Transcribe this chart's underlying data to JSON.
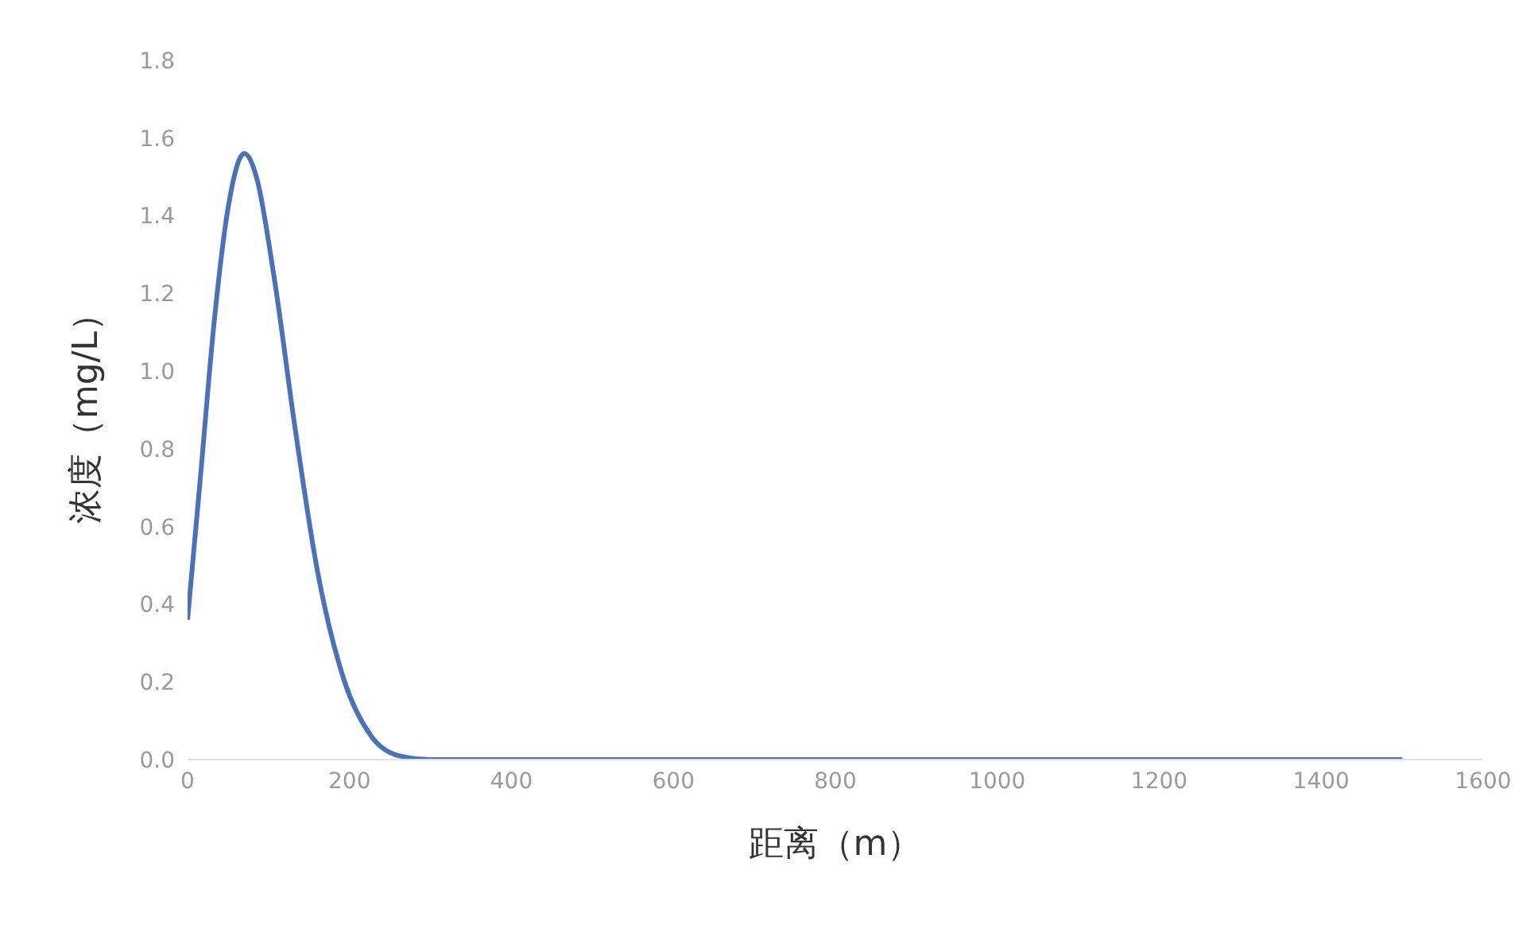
{
  "chart_data": {
    "type": "line",
    "xlabel": "距离（m）",
    "ylabel": "浓度（mg/L）",
    "x": [
      0,
      16,
      33,
      50,
      70,
      85,
      107,
      133,
      160,
      194,
      227,
      261,
      300,
      1500
    ],
    "series": [
      {
        "color": "#4a72b8",
        "values": [
          0.36,
          0.73,
          1.13,
          1.42,
          1.56,
          1.5,
          1.24,
          0.85,
          0.49,
          0.2,
          0.06,
          0.01,
          0,
          0
        ]
      }
    ],
    "xlim": [
      0,
      1600
    ],
    "xticks": [
      0,
      200,
      400,
      600,
      800,
      1000,
      1200,
      1400,
      1600
    ],
    "ylim": [
      0,
      1.8
    ],
    "yticks": [
      {
        "value": 0,
        "label": "0.0"
      },
      0.2,
      0.4,
      0.6,
      0.8,
      {
        "value": 1,
        "label": "1.0"
      },
      1.2,
      1.4,
      1.6,
      1.8
    ],
    "grid": false,
    "legend": false,
    "marker": "none",
    "line_style": "solid"
  }
}
